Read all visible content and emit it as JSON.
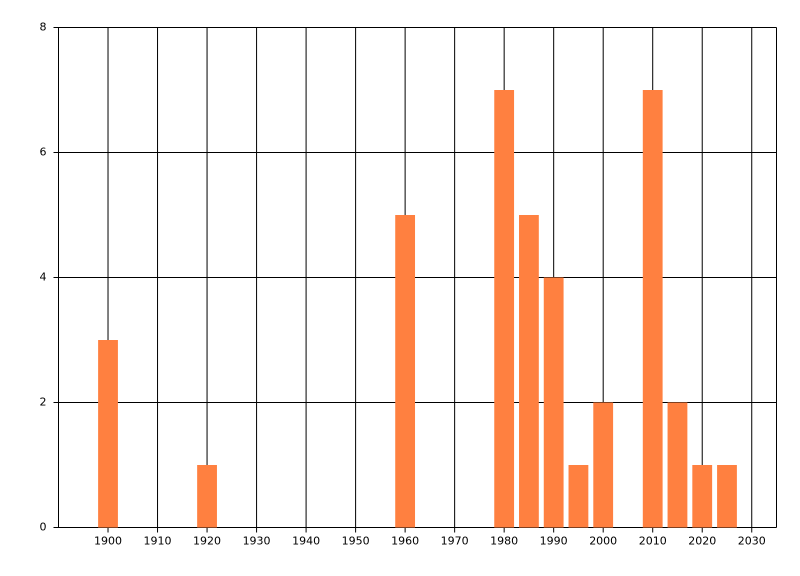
{
  "chart_data": {
    "type": "bar",
    "x": [
      1900,
      1920,
      1960,
      1980,
      1985,
      1990,
      1995,
      2000,
      2010,
      2015,
      2020,
      2025
    ],
    "values": [
      3,
      1,
      5,
      7,
      5,
      4,
      1,
      2,
      7,
      2,
      1,
      1
    ],
    "color": "#ff8040",
    "xlim": [
      1890,
      2035
    ],
    "xticks": [
      1900,
      1910,
      1920,
      1930,
      1940,
      1950,
      1960,
      1970,
      1980,
      1990,
      2000,
      2010,
      2020,
      2030
    ],
    "ylim": [
      0,
      8
    ],
    "yticks": [
      0,
      2,
      4,
      6,
      8
    ],
    "grid": true
  }
}
